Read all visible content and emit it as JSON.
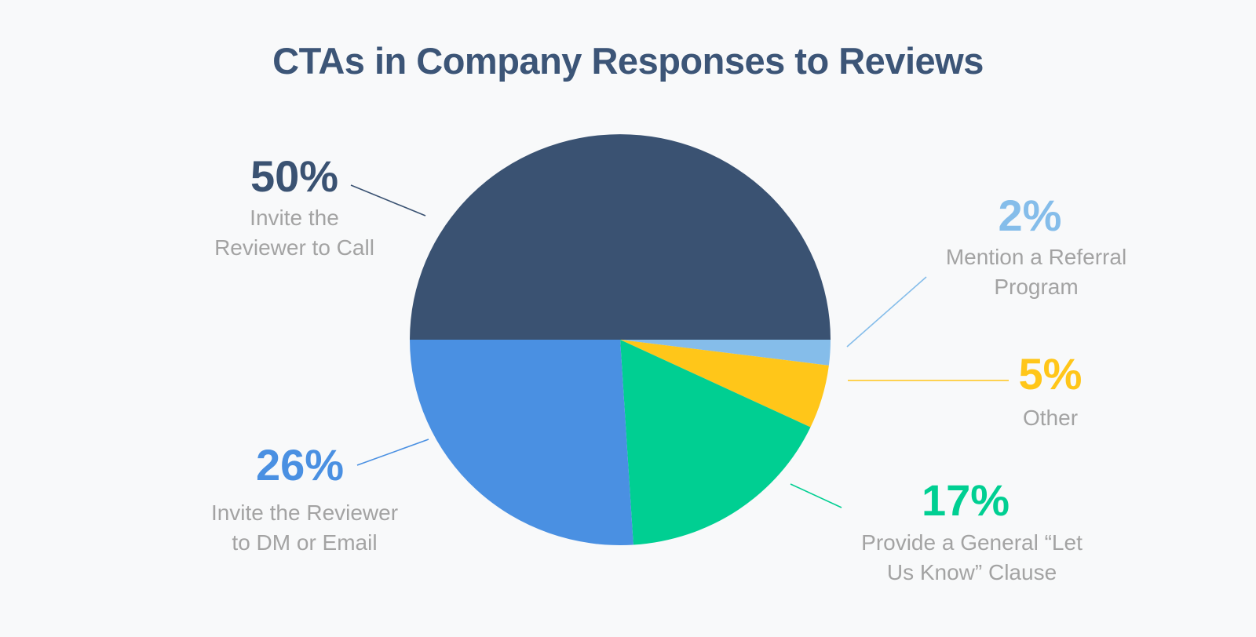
{
  "title": "CTAs in Company Responses to Reviews",
  "chart_data": {
    "type": "pie",
    "title": "CTAs in Company Responses to Reviews",
    "slices": [
      {
        "percent_label": "50%",
        "value": 50,
        "label_lines": [
          "Invite the",
          "Reviewer to Call"
        ],
        "color": "#3a5272"
      },
      {
        "percent_label": "2%",
        "value": 2,
        "label_lines": [
          "Mention a Referral",
          "Program"
        ],
        "color": "#85bdea"
      },
      {
        "percent_label": "5%",
        "value": 5,
        "label_lines": [
          "Other"
        ],
        "color": "#ffc619"
      },
      {
        "percent_label": "17%",
        "value": 17,
        "label_lines": [
          "Provide a General “Let",
          "Us Know” Clause"
        ],
        "color": "#00cf92"
      },
      {
        "percent_label": "26%",
        "value": 26,
        "label_lines": [
          "Invite the Reviewer",
          "to DM or Email"
        ],
        "color": "#4a90e2"
      }
    ]
  }
}
